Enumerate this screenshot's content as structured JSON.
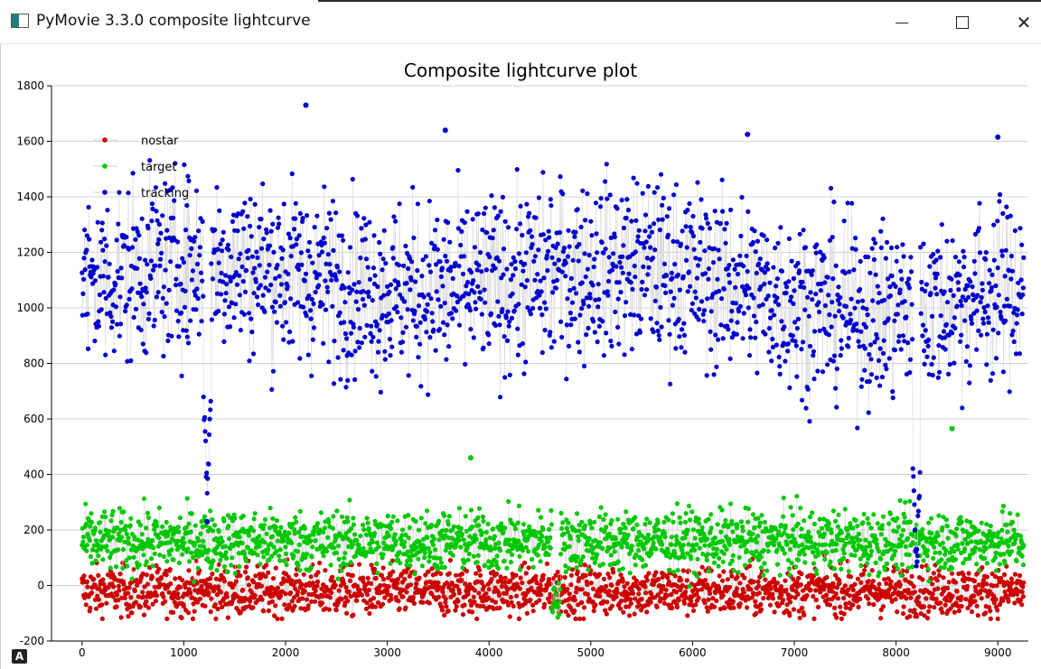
{
  "window": {
    "title": "PyMovie 3.3.0 composite lightcurve"
  },
  "badge": "A",
  "chart_data": {
    "type": "scatter",
    "title": "Composite lightcurve plot",
    "xlabel": "",
    "ylabel": "",
    "xlim": [
      -300,
      9300
    ],
    "ylim": [
      -200,
      1800
    ],
    "xticks": [
      0,
      1000,
      2000,
      3000,
      4000,
      5000,
      6000,
      7000,
      8000,
      9000
    ],
    "yticks": [
      -200,
      0,
      200,
      400,
      600,
      800,
      1000,
      1200,
      1400,
      1600,
      1800
    ],
    "grid": true,
    "legend_position": "top-left",
    "n_points": 9260,
    "series": [
      {
        "name": "nostar",
        "color": "#cc0000",
        "mean": -20,
        "spread": 45,
        "description": "noise around 0"
      },
      {
        "name": "target",
        "color": "#00c800",
        "mean": 160,
        "spread": 55,
        "dip_at": [
          4620,
          4700
        ],
        "dip_value": -50
      },
      {
        "name": "tracking",
        "color": "#0000cc",
        "mean": 1080,
        "spread": 160,
        "dips": [
          [
            1230,
            250
          ],
          [
            8200,
            150
          ]
        ]
      }
    ],
    "notable_points": [
      {
        "series": "tracking",
        "x": 2200,
        "y": 1730
      },
      {
        "series": "tracking",
        "x": 3570,
        "y": 1640
      },
      {
        "series": "tracking",
        "x": 6540,
        "y": 1625
      },
      {
        "series": "tracking",
        "x": 9000,
        "y": 1615
      },
      {
        "series": "tracking",
        "x": 1230,
        "y": 230
      },
      {
        "series": "tracking",
        "x": 8200,
        "y": 130
      },
      {
        "series": "target",
        "x": 3820,
        "y": 460
      },
      {
        "series": "target",
        "x": 8550,
        "y": 565
      }
    ]
  }
}
